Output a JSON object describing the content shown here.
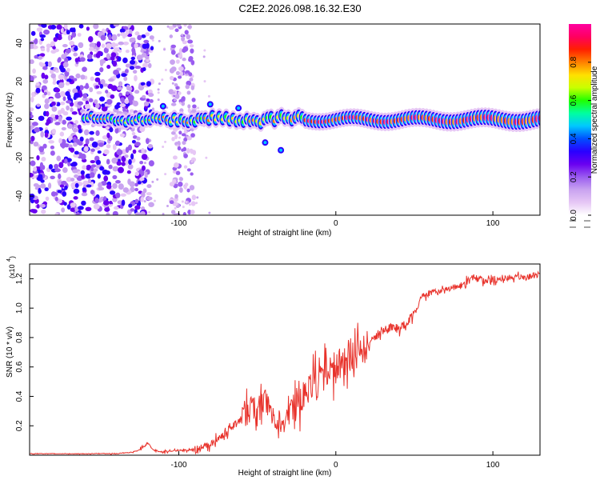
{
  "figure_title": "C2E2.2026.098.16.32.E30",
  "colors": {
    "line": "#e8322b",
    "axis": "#000000",
    "colormap": [
      "#ffffff",
      "#e6c7f5",
      "#c9a3f0",
      "#9a5cf0",
      "#6a00f0",
      "#2a00ff",
      "#0050ff",
      "#00c8ff",
      "#00ffa0",
      "#20ff00",
      "#c8ff00",
      "#ffe000",
      "#ff8000",
      "#ff2000",
      "#ff0060",
      "#ff00a0"
    ]
  },
  "chart_data": [
    {
      "type": "heatmap",
      "title": "",
      "xlabel": "Height of straight line (km)",
      "ylabel": "Frequency (Hz)",
      "xlim": [
        -195,
        130
      ],
      "ylim": [
        -50,
        50
      ],
      "xticks": [
        -100,
        0,
        100
      ],
      "yticks": [
        -40,
        -20,
        0,
        20,
        40
      ],
      "colorbar": {
        "label": "Normalized spectral amplitude",
        "range": [
          0,
          1
        ],
        "ticks": [
          0.0,
          0.2,
          0.4,
          0.6,
          0.8
        ]
      },
      "description_values": {
        "signal_band_center_hz": 0,
        "signal_band_start_km": -160,
        "noise_region_km": [
          -195,
          -125
        ],
        "noise_stripe_km": [
          -105,
          -90
        ]
      }
    },
    {
      "type": "line",
      "title": "",
      "xlabel": "Height of straight line (km)",
      "ylabel": "SNR (10 * v/v)",
      "scale_label": "(x10",
      "scale_exponent": "4",
      "xlim": [
        -195,
        130
      ],
      "ylim": [
        0,
        1.3
      ],
      "xticks": [
        -100,
        0,
        100
      ],
      "yticks": [
        0.2,
        0.4,
        0.6,
        0.8,
        1.0,
        1.2
      ],
      "series": [
        {
          "name": "SNR",
          "x": [
            -195,
            -180,
            -160,
            -140,
            -130,
            -125,
            -120,
            -115,
            -110,
            -100,
            -90,
            -85,
            -80,
            -75,
            -70,
            -65,
            -60,
            -55,
            -50,
            -45,
            -40,
            -35,
            -30,
            -25,
            -20,
            -15,
            -10,
            -5,
            0,
            5,
            10,
            15,
            20,
            25,
            30,
            35,
            40,
            45,
            50,
            55,
            60,
            65,
            70,
            75,
            80,
            85,
            90,
            95,
            100,
            105,
            110,
            115,
            120,
            125,
            130
          ],
          "values": [
            0.01,
            0.01,
            0.01,
            0.01,
            0.02,
            0.04,
            0.08,
            0.03,
            0.02,
            0.03,
            0.04,
            0.05,
            0.07,
            0.12,
            0.15,
            0.2,
            0.25,
            0.3,
            0.34,
            0.36,
            0.3,
            0.2,
            0.28,
            0.35,
            0.42,
            0.48,
            0.52,
            0.56,
            0.6,
            0.63,
            0.66,
            0.7,
            0.74,
            0.8,
            0.84,
            0.87,
            0.86,
            0.9,
            0.97,
            1.08,
            1.1,
            1.12,
            1.13,
            1.14,
            1.15,
            1.2,
            1.21,
            1.18,
            1.19,
            1.2,
            1.21,
            1.21,
            1.21,
            1.22,
            1.22
          ]
        }
      ]
    }
  ]
}
